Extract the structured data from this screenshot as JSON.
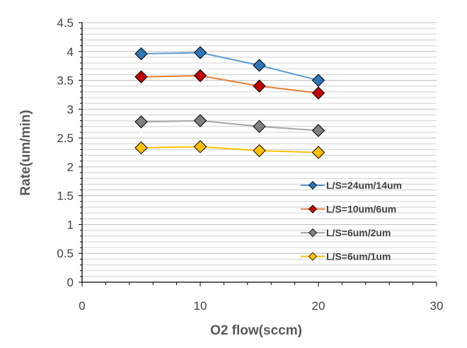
{
  "chart_data": {
    "type": "line",
    "title": "",
    "xlabel": "O2 flow(sccm)",
    "ylabel": "Rate(um/min)",
    "xlim": [
      0,
      30
    ],
    "ylim": [
      0,
      4.5
    ],
    "x_ticks": [
      "0",
      "10",
      "20",
      "30"
    ],
    "y_ticks": [
      "0",
      "0.5",
      "1",
      "1.5",
      "2",
      "2.5",
      "3",
      "3.5",
      "4",
      "4.5"
    ],
    "grid": true,
    "legend_position": "right",
    "x": [
      5,
      10,
      15,
      20
    ],
    "series": [
      {
        "name": "L/S=24um/14um",
        "values": [
          3.96,
          3.98,
          3.76,
          3.5
        ],
        "color": "#5B9BD5",
        "marker_color": "#2E75B6"
      },
      {
        "name": "L/S=10um/6um",
        "values": [
          3.56,
          3.58,
          3.4,
          3.28
        ],
        "color": "#ED7D31",
        "marker_color": "#C00000"
      },
      {
        "name": "L/S=6um/2um",
        "values": [
          2.78,
          2.8,
          2.7,
          2.63
        ],
        "color": "#A5A5A5",
        "marker_color": "#7F7F7F"
      },
      {
        "name": "L/S=6um/1um",
        "values": [
          2.33,
          2.35,
          2.28,
          2.25
        ],
        "color": "#FFC000",
        "marker_color": "#FFC000"
      }
    ]
  }
}
